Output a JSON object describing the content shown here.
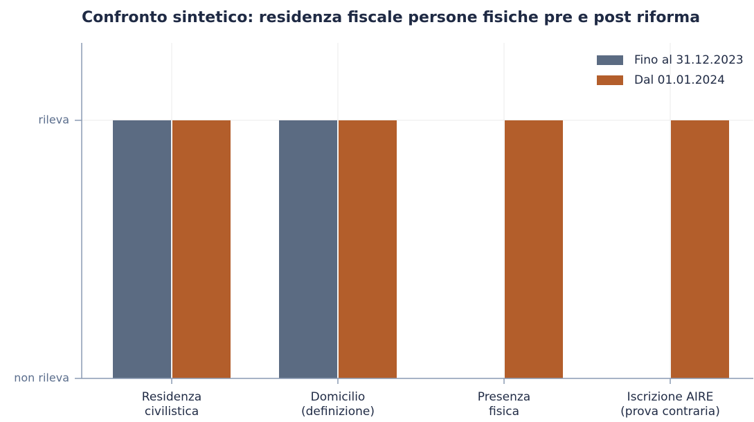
{
  "chart_data": {
    "type": "bar",
    "title": "Confronto sintetico: residenza fiscale persone fisiche pre e post riforma",
    "categories": [
      "Residenza\ncivilistica",
      "Domicilio\n(definizione)",
      "Presenza\nfisica",
      "Iscrizione AIRE\n(prova contraria)"
    ],
    "series": [
      {
        "name": "Fino al 31.12.2023",
        "color": "#5b6b82",
        "values": [
          1,
          1,
          0,
          0
        ]
      },
      {
        "name": "Dal 01.01.2024",
        "color": "#b35e2b",
        "values": [
          1,
          1,
          1,
          1
        ]
      }
    ],
    "ylim": [
      0,
      1.3
    ],
    "yticks": [
      {
        "value": 0,
        "label": "non rileva"
      },
      {
        "value": 1,
        "label": "rileva"
      }
    ],
    "grid": true,
    "legend": "upper right"
  }
}
